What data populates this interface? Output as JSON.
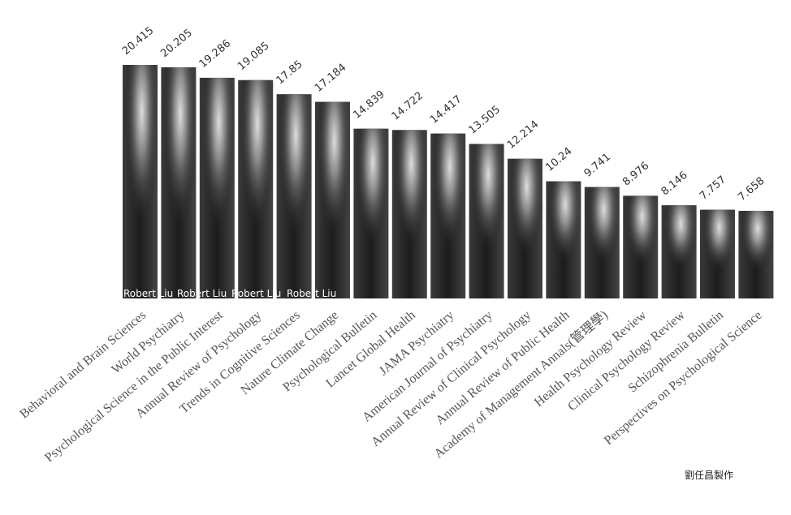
{
  "chart_data": {
    "type": "bar",
    "categories": [
      "Behavioral and Brain Sciences",
      "World Psychiatry",
      "Psychological Science in the Public Interest",
      "Annual Review of Psychology",
      "Trends in Cognitive Sciences",
      "Nature Climate Change",
      "Psychological Bulletin",
      "Lancet Global Health",
      "JAMA Psychiatry",
      "American Journal of Psychiatry",
      "Annual Review of Clinical Psychology",
      "Annual Review of Public Health",
      "Academy of Management Annals(管理學)",
      "Health Psychology Review",
      "Clinical Psychology Review",
      "Schizophrenia Bulletin",
      "Perspectives on Psychological Science"
    ],
    "values": [
      20.415,
      20.205,
      19.286,
      19.085,
      17.85,
      17.184,
      14.839,
      14.722,
      14.417,
      13.505,
      12.214,
      10.24,
      9.741,
      8.976,
      8.146,
      7.757,
      7.658
    ],
    "color": "#2a2a2a",
    "watermarks": [
      "Robert Liu",
      "Robert Liu",
      "Robert Liu",
      "Robert Liu",
      "Robert Liu"
    ],
    "credit": "劉任昌製作"
  }
}
